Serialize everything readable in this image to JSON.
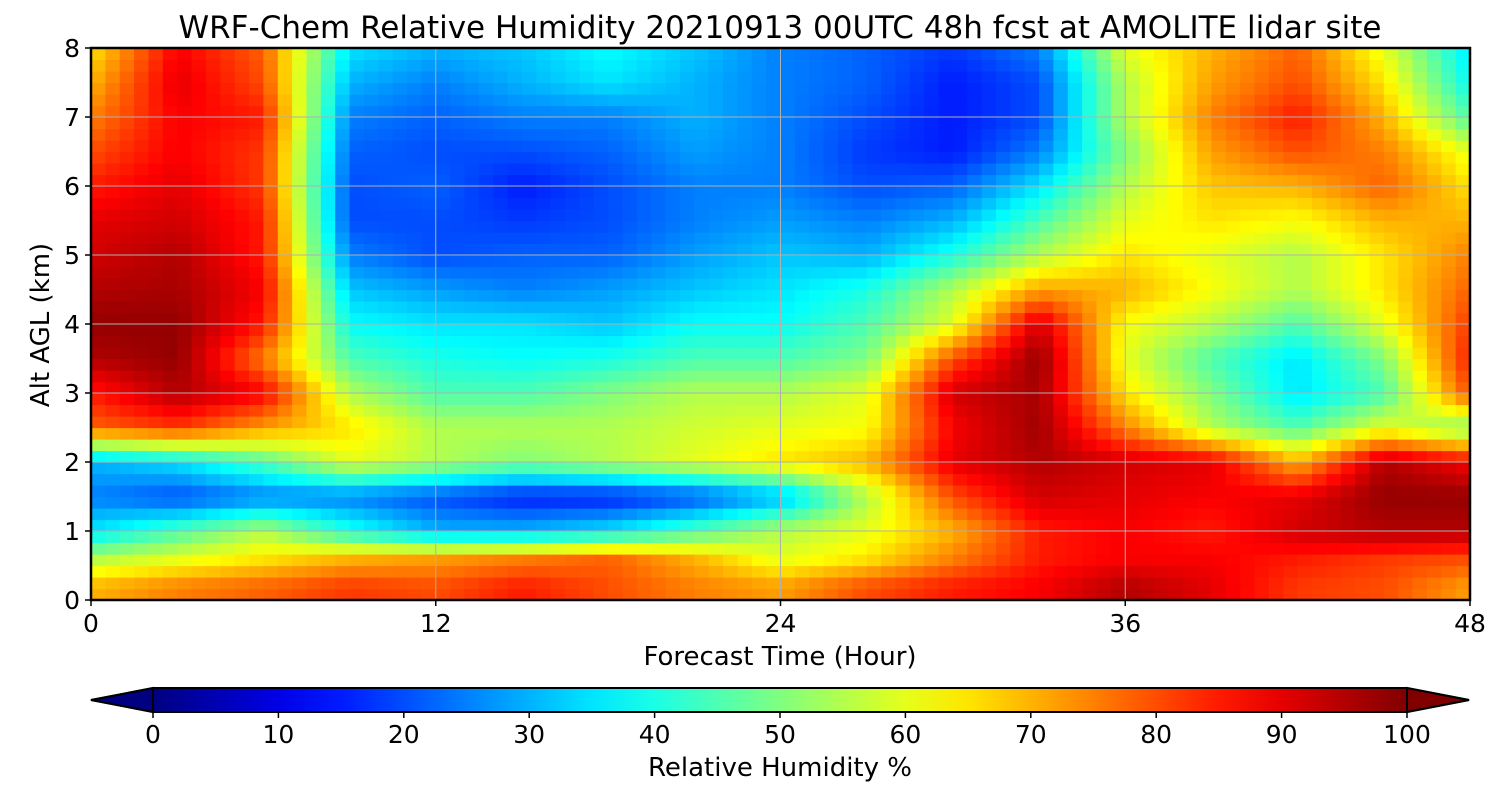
{
  "chart_data": {
    "type": "heatmap",
    "title": "WRF-Chem Relative Humidity 20210913 00UTC 48h fcst at AMOLITE lidar site",
    "xlabel": "Forecast Time (Hour)",
    "ylabel": "Alt AGL (km)",
    "xlim": [
      0,
      48
    ],
    "ylim": [
      0,
      8
    ],
    "x_ticks": [
      "0",
      "12",
      "24",
      "36",
      "48"
    ],
    "y_ticks": [
      "0",
      "1",
      "2",
      "3",
      "4",
      "5",
      "6",
      "7",
      "8"
    ],
    "grid": true,
    "colormap": "jet",
    "colorbar": {
      "label": "Relative Humidity %",
      "range": [
        0,
        100
      ],
      "ticks": [
        "0",
        "10",
        "20",
        "30",
        "40",
        "50",
        "60",
        "70",
        "80",
        "90",
        "100"
      ],
      "extend": "both",
      "placement": "bottom"
    },
    "x": [
      0,
      3,
      6,
      9,
      12,
      15,
      18,
      21,
      24,
      27,
      30,
      33,
      36,
      39,
      42,
      45,
      48
    ],
    "y": [
      0.2,
      0.6,
      1.0,
      1.5,
      2.0,
      2.5,
      3.0,
      3.5,
      4.0,
      4.5,
      5.0,
      5.5,
      6.0,
      6.5,
      7.0,
      7.5,
      8.0
    ],
    "values": [
      [
        70,
        75,
        78,
        82,
        80,
        85,
        80,
        75,
        72,
        80,
        85,
        88,
        95,
        90,
        82,
        80,
        72
      ],
      [
        55,
        60,
        65,
        70,
        72,
        75,
        78,
        70,
        60,
        65,
        75,
        85,
        88,
        88,
        85,
        82,
        80
      ],
      [
        35,
        45,
        55,
        40,
        30,
        30,
        35,
        45,
        55,
        60,
        70,
        85,
        88,
        85,
        92,
        95,
        95
      ],
      [
        25,
        20,
        25,
        25,
        20,
        15,
        15,
        20,
        30,
        55,
        80,
        92,
        90,
        88,
        90,
        98,
        98
      ],
      [
        30,
        35,
        45,
        60,
        55,
        50,
        55,
        60,
        65,
        70,
        90,
        95,
        92,
        90,
        70,
        95,
        88
      ],
      [
        78,
        82,
        72,
        65,
        55,
        55,
        55,
        58,
        60,
        62,
        88,
        97,
        75,
        55,
        45,
        60,
        50
      ],
      [
        85,
        95,
        88,
        55,
        45,
        45,
        50,
        55,
        55,
        60,
        92,
        96,
        65,
        50,
        35,
        45,
        80
      ],
      [
        95,
        98,
        75,
        45,
        40,
        38,
        40,
        45,
        45,
        50,
        80,
        98,
        60,
        45,
        35,
        50,
        85
      ],
      [
        98,
        98,
        85,
        38,
        35,
        35,
        32,
        38,
        38,
        45,
        60,
        92,
        62,
        55,
        45,
        60,
        82
      ],
      [
        95,
        96,
        88,
        32,
        28,
        25,
        28,
        32,
        35,
        40,
        55,
        72,
        70,
        62,
        55,
        65,
        78
      ],
      [
        92,
        95,
        85,
        25,
        20,
        22,
        22,
        28,
        32,
        30,
        40,
        55,
        65,
        60,
        55,
        65,
        75
      ],
      [
        90,
        92,
        85,
        20,
        20,
        18,
        20,
        25,
        28,
        25,
        30,
        45,
        60,
        65,
        62,
        70,
        70
      ],
      [
        85,
        90,
        82,
        20,
        22,
        15,
        20,
        25,
        25,
        20,
        22,
        35,
        55,
        68,
        70,
        78,
        65
      ],
      [
        80,
        88,
        82,
        22,
        20,
        20,
        22,
        28,
        25,
        18,
        15,
        25,
        50,
        72,
        80,
        75,
        60
      ],
      [
        75,
        88,
        85,
        25,
        22,
        25,
        25,
        30,
        25,
        20,
        15,
        20,
        55,
        75,
        85,
        70,
        45
      ],
      [
        70,
        90,
        80,
        30,
        25,
        30,
        35,
        30,
        25,
        22,
        15,
        20,
        55,
        72,
        80,
        65,
        38
      ],
      [
        65,
        88,
        78,
        35,
        30,
        32,
        38,
        32,
        25,
        22,
        18,
        25,
        60,
        70,
        78,
        60,
        35
      ]
    ]
  }
}
